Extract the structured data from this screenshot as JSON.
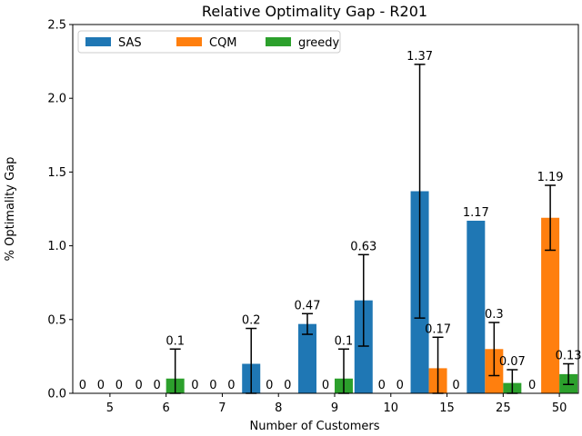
{
  "chart_data": {
    "type": "bar",
    "title": "Relative Optimality Gap - R201",
    "xlabel": "Number of Customers",
    "ylabel": "% Optimality Gap",
    "ylim": [
      0,
      2.5
    ],
    "yticks": [
      0.0,
      0.5,
      1.0,
      1.5,
      2.0,
      2.5
    ],
    "ytick_labels": [
      "0.0",
      "0.5",
      "1.0",
      "1.5",
      "2.0",
      "2.5"
    ],
    "categories": [
      "5",
      "6",
      "7",
      "8",
      "9",
      "10",
      "15",
      "25",
      "50"
    ],
    "grid": false,
    "legend_position": "top-left",
    "series": [
      {
        "name": "SAS",
        "color": "#1f77b4",
        "values": [
          0,
          0,
          0,
          0.2,
          0.47,
          0.63,
          1.37,
          1.17,
          0
        ],
        "labels": [
          "0",
          "0",
          "0",
          "0.2",
          "0.47",
          "0.63",
          "1.37",
          "1.17",
          "0"
        ],
        "errors": [
          0,
          0,
          0,
          0.24,
          0.07,
          0.31,
          0.86,
          0,
          0
        ]
      },
      {
        "name": "CQM",
        "color": "#ff7f0e",
        "values": [
          0,
          0,
          0,
          0,
          0,
          0,
          0.17,
          0.3,
          1.19
        ],
        "labels": [
          "0",
          "0",
          "0",
          "0",
          "0",
          "0",
          "0.17",
          "0.3",
          "1.19"
        ],
        "errors": [
          0,
          0,
          0,
          0,
          0,
          0,
          0.21,
          0.18,
          0.22
        ]
      },
      {
        "name": "greedy",
        "color": "#2ca02c",
        "values": [
          0,
          0.1,
          0,
          0,
          0.1,
          0,
          0,
          0.07,
          0.13
        ],
        "labels": [
          "0",
          "0.1",
          "0",
          "0",
          "0.1",
          "0",
          "0",
          "0.07",
          "0.13"
        ],
        "errors": [
          0,
          0.2,
          0,
          0,
          0.2,
          0,
          0,
          0.09,
          0.07
        ]
      }
    ]
  }
}
